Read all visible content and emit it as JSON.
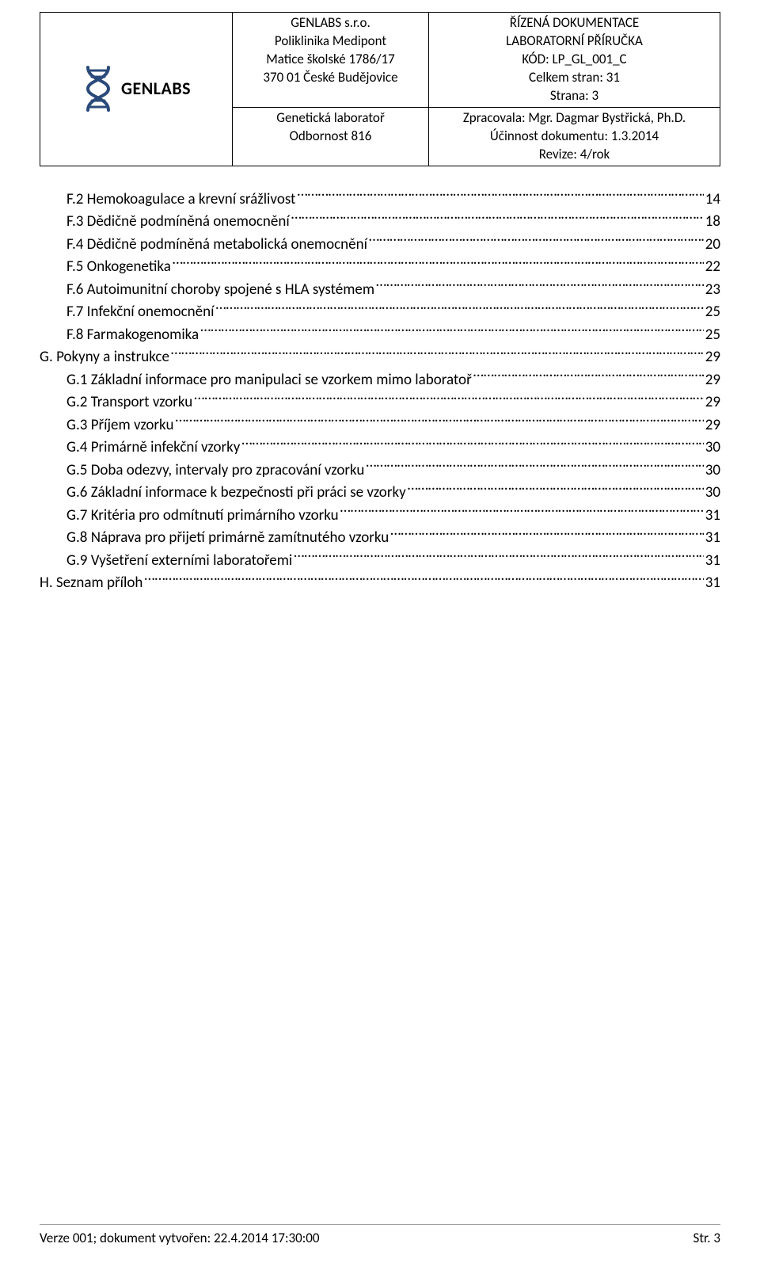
{
  "header": {
    "logo_text": "GENLABS",
    "company": {
      "name": "GENLABS s.r.o.",
      "line2": "Poliklinika Medipont",
      "line3": "Matice školské 1786/17",
      "line4": "370 01 České Budějovice"
    },
    "lab": {
      "line1": "Genetická laboratoř",
      "line2": "Odbornost  816"
    },
    "doc": {
      "line1": "ŘÍZENÁ DOKUMENTACE",
      "line2": "LABORATORNÍ PŘÍRUČKA",
      "line3": "KÓD: LP_GL_001_C",
      "line4": "Celkem stran: 31",
      "line5": "Strana: 3"
    },
    "meta": {
      "line1": "Zpracovala: Mgr. Dagmar Bystřická, Ph.D.",
      "line2": "Účinnost dokumentu: 1.3.2014",
      "line3": "Revize: 4/rok"
    }
  },
  "toc": [
    {
      "indent": 1,
      "label": "F.2 Hemokoagulace a krevní srážlivost",
      "page": "14"
    },
    {
      "indent": 1,
      "label": "F.3 Dědičně podmíněná onemocnění",
      "page": "18"
    },
    {
      "indent": 1,
      "label": "F.4 Dědičně podmíněná metabolická onemocnění",
      "page": "20"
    },
    {
      "indent": 1,
      "label": "F.5 Onkogenetika",
      "page": "22"
    },
    {
      "indent": 1,
      "label": "F.6 Autoimunitní choroby spojené s HLA systémem",
      "page": "23"
    },
    {
      "indent": 1,
      "label": "F.7 Infekční onemocnění",
      "page": "25"
    },
    {
      "indent": 1,
      "label": "F.8 Farmakogenomika",
      "page": "25"
    },
    {
      "indent": 0,
      "label": "G. Pokyny a instrukce",
      "page": "29"
    },
    {
      "indent": 1,
      "label": "G.1 Základní informace pro manipulaci se vzorkem mimo laboratoř",
      "page": "29"
    },
    {
      "indent": 1,
      "label": "G.2 Transport vzorku",
      "page": "29"
    },
    {
      "indent": 1,
      "label": "G.3 Příjem vzorku",
      "page": "29"
    },
    {
      "indent": 1,
      "label": "G.4 Primárně infekční vzorky",
      "page": "30"
    },
    {
      "indent": 1,
      "label": "G.5 Doba odezvy, intervaly pro zpracování vzorku",
      "page": "30"
    },
    {
      "indent": 1,
      "label": "G.6 Základní informace k bezpečnosti při práci se vzorky",
      "page": "30"
    },
    {
      "indent": 1,
      "label": "G.7 Kritéria pro odmítnutí primárního vzorku",
      "page": "31"
    },
    {
      "indent": 1,
      "label": "G.8 Náprava pro přijetí primárně zamítnutého vzorku",
      "page": "31"
    },
    {
      "indent": 1,
      "label": "G.9 Vyšetření externími laboratořemi",
      "page": "31"
    },
    {
      "indent": 0,
      "label": "H. Seznam příloh",
      "page": "31"
    }
  ],
  "footer": {
    "left": "Verze 001; dokument vytvořen: 22.4.2014 17:30:00",
    "right": "Str.  3"
  },
  "style": {
    "text_color": "#000000",
    "background": "#ffffff",
    "border_color": "#000000",
    "footer_border": "#a0a0a0",
    "body_fontsize": 19,
    "header_fontsize": 17,
    "logo_fontsize": 22,
    "font_family": "Calibri"
  }
}
